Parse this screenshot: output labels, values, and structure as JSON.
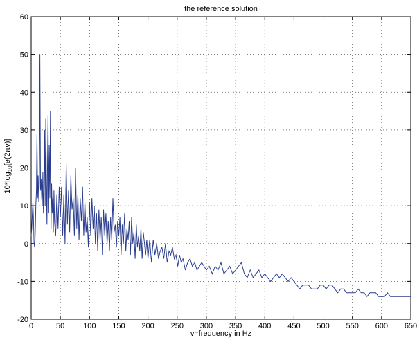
{
  "chart_data": {
    "type": "line",
    "title": "the reference solution",
    "xlabel": "v=frequency in Hz",
    "ylabel_main": "10*log",
    "ylabel_sub": "10",
    "ylabel_tail": "[e(2πv)]",
    "xlim": [
      0,
      650
    ],
    "ylim": [
      -20,
      60
    ],
    "xticks": [
      0,
      50,
      100,
      150,
      200,
      250,
      300,
      350,
      400,
      450,
      500,
      550,
      600,
      650
    ],
    "yticks": [
      -20,
      -10,
      0,
      10,
      20,
      30,
      40,
      50,
      60
    ],
    "grid": true,
    "line_color": "#2a3d8f",
    "series": [
      {
        "x": [
          0,
          1,
          2,
          3,
          4,
          5,
          6,
          7,
          8,
          9,
          10,
          11,
          12,
          13,
          14,
          15,
          16,
          17,
          18,
          19,
          20,
          21,
          22,
          23,
          24,
          25,
          26,
          27,
          28,
          29,
          30,
          31,
          32,
          33,
          34,
          35,
          36,
          37,
          38,
          39,
          40,
          42,
          44,
          46,
          48,
          50,
          52,
          54,
          56,
          58,
          60,
          62,
          64,
          66,
          68,
          70,
          72,
          74,
          76,
          78,
          80,
          82,
          84,
          86,
          88,
          90,
          92,
          94,
          96,
          98,
          100,
          102,
          104,
          106,
          108,
          110,
          112,
          114,
          116,
          118,
          120,
          122,
          124,
          126,
          128,
          130,
          132,
          134,
          136,
          138,
          140,
          142,
          144,
          146,
          148,
          150,
          152,
          154,
          156,
          158,
          160,
          162,
          164,
          166,
          168,
          170,
          172,
          174,
          176,
          178,
          180,
          182,
          184,
          186,
          188,
          190,
          192,
          194,
          196,
          198,
          200,
          203,
          206,
          209,
          212,
          215,
          218,
          221,
          224,
          227,
          230,
          233,
          236,
          239,
          242,
          245,
          248,
          251,
          254,
          257,
          260,
          264,
          268,
          272,
          276,
          280,
          284,
          288,
          292,
          296,
          300,
          305,
          310,
          315,
          320,
          325,
          330,
          335,
          340,
          345,
          350,
          355,
          360,
          365,
          370,
          375,
          380,
          385,
          390,
          395,
          400,
          405,
          410,
          415,
          420,
          425,
          430,
          435,
          440,
          445,
          450,
          455,
          460,
          465,
          470,
          475,
          480,
          485,
          490,
          495,
          500,
          505,
          510,
          515,
          520,
          525,
          530,
          535,
          540,
          545,
          550,
          555,
          560,
          565,
          570,
          575,
          580,
          585,
          590,
          595,
          600,
          605,
          610,
          615,
          620,
          625,
          630,
          635,
          640,
          645,
          650
        ],
        "y": [
          2,
          4,
          8,
          11,
          6,
          0,
          -1,
          3,
          10,
          14,
          29,
          12,
          18,
          11,
          16,
          50,
          14,
          17,
          12,
          10,
          19,
          8,
          14,
          30,
          10,
          33,
          18,
          5,
          22,
          34,
          8,
          26,
          12,
          35,
          4,
          16,
          8,
          12,
          3,
          14,
          6,
          2,
          13,
          4,
          15,
          7,
          15,
          2,
          13,
          0,
          21,
          5,
          14,
          3,
          18,
          9,
          12,
          2,
          20,
          4,
          13,
          1,
          12,
          6,
          15,
          2,
          11,
          3,
          7,
          -1,
          11,
          2,
          12,
          4,
          10,
          0,
          8,
          -2,
          9,
          1,
          7,
          -3,
          9,
          2,
          8,
          0,
          6,
          -2,
          7,
          1,
          12,
          3,
          5,
          -1,
          6,
          2,
          7,
          -3,
          5,
          0,
          8,
          -2,
          4,
          1,
          6,
          -3,
          7,
          0,
          3,
          -4,
          5,
          -1,
          2,
          -2,
          4,
          -4,
          3,
          0,
          -3,
          1,
          -4,
          1,
          -5,
          1,
          -3,
          0,
          -4,
          -2,
          -1,
          -4,
          0,
          -5,
          -2,
          -3,
          -1,
          -4,
          -3,
          -6,
          -3,
          -5,
          -4,
          -7,
          -5,
          -4,
          -6,
          -5,
          -7,
          -6,
          -5,
          -6,
          -7,
          -6,
          -8,
          -6,
          -7,
          -5,
          -8,
          -7,
          -6,
          -8,
          -7,
          -6,
          -5,
          -8,
          -9,
          -7,
          -9,
          -8,
          -7,
          -9,
          -8,
          -9,
          -10,
          -9,
          -8,
          -9,
          -8,
          -9,
          -10,
          -9,
          -10,
          -11,
          -12,
          -11,
          -11,
          -11,
          -12,
          -12,
          -12,
          -11,
          -11,
          -12,
          -11,
          -11,
          -12,
          -13,
          -12,
          -12,
          -13,
          -13,
          -13,
          -13,
          -12,
          -13,
          -13,
          -14,
          -13,
          -13,
          -13,
          -14,
          -14,
          -14,
          -13,
          -14,
          -14,
          -14,
          -14,
          -14,
          -14,
          -14,
          -14
        ]
      }
    ]
  }
}
